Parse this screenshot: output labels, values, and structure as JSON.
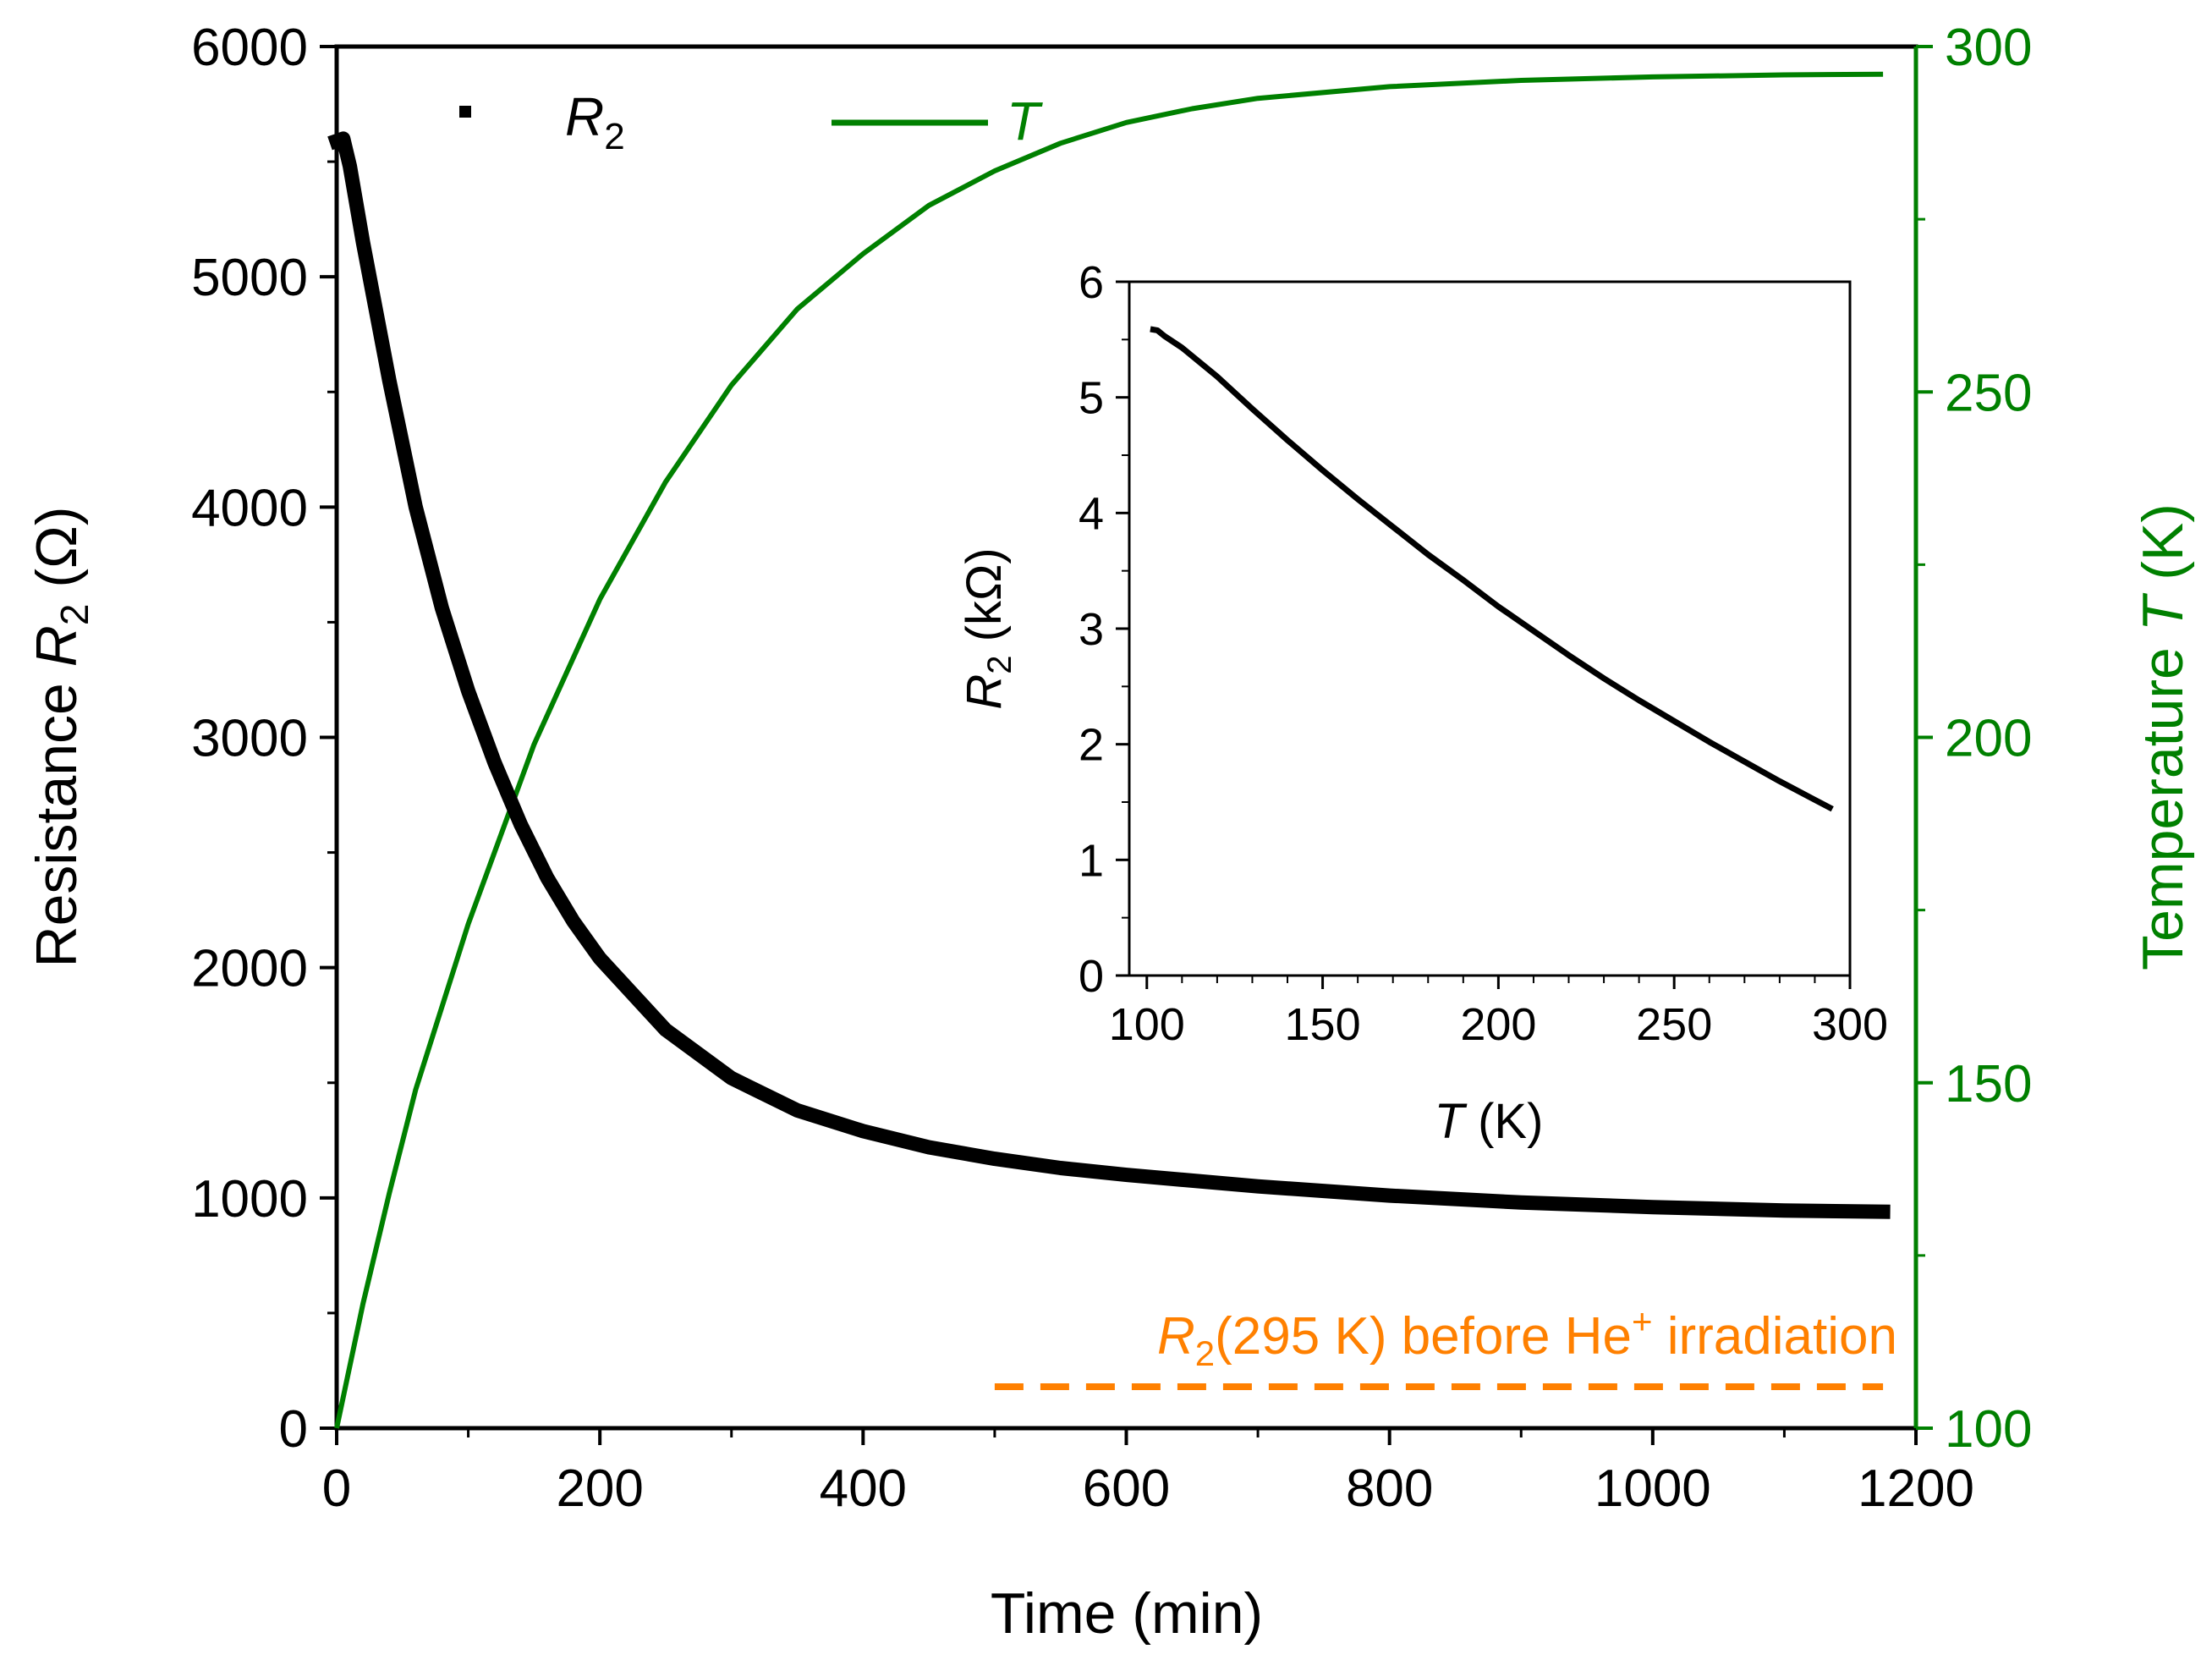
{
  "chart_data": [
    {
      "type": "line",
      "role": "main",
      "xlabel": "Time  (min)",
      "xlim": [
        0,
        1200
      ],
      "x_ticks": [
        0,
        200,
        400,
        600,
        800,
        1000,
        1200
      ],
      "ylabel_left": {
        "prefix": "Resistance ",
        "var": "R",
        "sub": "2",
        "suffix": "  (Ω)"
      },
      "ylim_left": [
        0,
        6000
      ],
      "y_ticks_left": [
        0,
        1000,
        2000,
        3000,
        4000,
        5000,
        6000
      ],
      "ylabel_right": {
        "prefix": "Temperature  ",
        "var": "T",
        "suffix": "  (K)"
      },
      "ylim_right": [
        100,
        300
      ],
      "y_ticks_right": [
        100,
        150,
        200,
        250,
        300
      ],
      "series": [
        {
          "name": "R2",
          "label_var": "R",
          "label_sub": "2",
          "axis": "left",
          "color": "#000000",
          "marker": "square",
          "x": [
            0,
            5,
            10,
            20,
            40,
            60,
            80,
            100,
            120,
            140,
            160,
            180,
            200,
            250,
            300,
            350,
            400,
            450,
            500,
            550,
            600,
            700,
            800,
            900,
            1000,
            1100,
            1175
          ],
          "y": [
            5590,
            5600,
            5480,
            5150,
            4550,
            4000,
            3560,
            3200,
            2890,
            2620,
            2390,
            2200,
            2040,
            1730,
            1520,
            1380,
            1290,
            1220,
            1170,
            1130,
            1100,
            1050,
            1010,
            980,
            960,
            945,
            940
          ]
        },
        {
          "name": "T",
          "label_var": "T",
          "axis": "right",
          "color": "#008000",
          "marker": "line",
          "x": [
            0,
            20,
            40,
            60,
            80,
            100,
            150,
            200,
            250,
            300,
            350,
            400,
            450,
            500,
            550,
            600,
            650,
            700,
            800,
            900,
            1000,
            1100,
            1175
          ],
          "y": [
            100,
            118,
            134,
            149,
            161,
            173,
            199,
            220,
            237,
            251,
            262,
            270,
            277,
            282,
            286,
            289,
            291,
            292.5,
            294.2,
            295.1,
            295.6,
            295.9,
            296
          ]
        }
      ],
      "reference_line": {
        "y": 180,
        "axis": "left",
        "x_range": [
          500,
          1175
        ],
        "style": "dashed",
        "color": "#ff8000",
        "label_var": "R",
        "label_sub": "2",
        "label_mid": "(295 K) before He",
        "label_sup": "+",
        "label_end": " irradiation"
      },
      "legend_position": "top"
    },
    {
      "type": "line",
      "role": "inset",
      "xlabel_var": "T",
      "xlabel_suffix": " (K)",
      "xlim": [
        95,
        300
      ],
      "x_ticks": [
        100,
        150,
        200,
        250,
        300
      ],
      "ylabel_var": "R",
      "ylabel_sub": "2",
      "ylabel_suffix": "  (kΩ)",
      "ylim": [
        0,
        6
      ],
      "y_ticks": [
        0,
        1,
        2,
        3,
        4,
        5,
        6
      ],
      "series": [
        {
          "name": "R2 vs T",
          "color": "#000000",
          "x": [
            101,
            103,
            105,
            110,
            120,
            130,
            140,
            150,
            160,
            170,
            180,
            190,
            200,
            210,
            220,
            230,
            240,
            250,
            260,
            270,
            280,
            290,
            295
          ],
          "y": [
            5.59,
            5.58,
            5.53,
            5.43,
            5.18,
            4.9,
            4.63,
            4.37,
            4.12,
            3.88,
            3.64,
            3.42,
            3.19,
            2.98,
            2.77,
            2.57,
            2.38,
            2.2,
            2.02,
            1.85,
            1.68,
            1.52,
            1.44
          ]
        }
      ]
    }
  ]
}
